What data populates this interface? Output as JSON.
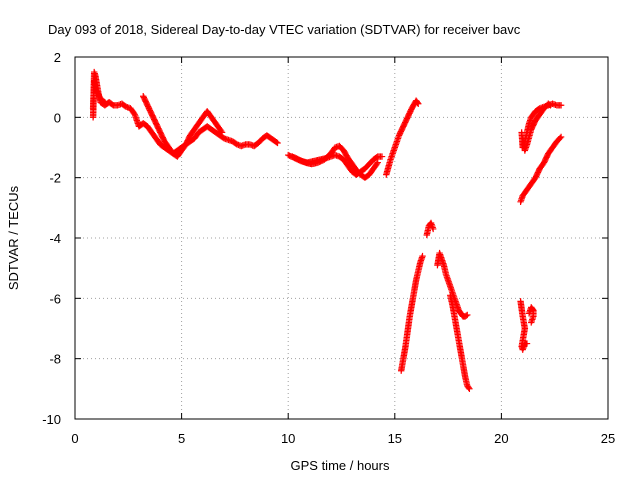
{
  "chart_data": {
    "type": "scatter",
    "title": "Day 093 of 2018, Sidereal Day-to-day VTEC variation (SDTVAR) for receiver bavc",
    "xlabel": "GPS time / hours",
    "ylabel": "SDTVAR / TECUs",
    "xlim": [
      0,
      25
    ],
    "ylim": [
      -10,
      2
    ],
    "xticks": [
      "0",
      "5",
      "10",
      "15",
      "20",
      "25"
    ],
    "yticks": [
      "-10",
      "-8",
      "-6",
      "-4",
      "-2",
      "0",
      "2"
    ],
    "grid": true,
    "marker": "plus",
    "color": "#ff0000",
    "series": [
      {
        "name": "sdtvar",
        "segments": [
          [
            [
              0.85,
              0.0
            ],
            [
              0.9,
              1.5
            ],
            [
              0.95,
              1.4
            ],
            [
              1.0,
              1.2
            ],
            [
              1.1,
              0.8
            ],
            [
              1.2,
              0.5
            ],
            [
              1.4,
              0.4
            ],
            [
              1.6,
              0.5
            ],
            [
              1.8,
              0.4
            ],
            [
              2.0,
              0.4
            ],
            [
              2.2,
              0.45
            ],
            [
              2.4,
              0.35
            ],
            [
              2.6,
              0.3
            ],
            [
              2.8,
              0.1
            ],
            [
              3.0,
              -0.3
            ],
            [
              3.2,
              -0.2
            ],
            [
              3.4,
              -0.3
            ],
            [
              3.6,
              -0.5
            ],
            [
              3.8,
              -0.7
            ],
            [
              4.0,
              -0.9
            ],
            [
              4.2,
              -1.0
            ],
            [
              4.4,
              -1.1
            ],
            [
              4.6,
              -1.2
            ],
            [
              4.8,
              -1.1
            ],
            [
              5.0,
              -1.0
            ],
            [
              5.2,
              -0.9
            ],
            [
              5.4,
              -0.8
            ],
            [
              5.6,
              -0.7
            ],
            [
              5.8,
              -0.5
            ],
            [
              6.0,
              -0.4
            ],
            [
              6.2,
              -0.3
            ],
            [
              6.4,
              -0.4
            ],
            [
              6.6,
              -0.5
            ],
            [
              6.8,
              -0.6
            ],
            [
              7.0,
              -0.7
            ],
            [
              7.2,
              -0.75
            ],
            [
              7.4,
              -0.8
            ],
            [
              7.6,
              -0.9
            ],
            [
              7.8,
              -0.95
            ],
            [
              8.0,
              -0.9
            ],
            [
              8.2,
              -0.9
            ],
            [
              8.4,
              -0.95
            ],
            [
              8.6,
              -0.85
            ],
            [
              8.8,
              -0.7
            ],
            [
              9.0,
              -0.6
            ],
            [
              9.2,
              -0.7
            ],
            [
              9.4,
              -0.8
            ],
            [
              9.5,
              -0.85
            ]
          ],
          [
            [
              3.2,
              0.7
            ],
            [
              3.4,
              0.4
            ],
            [
              3.6,
              0.1
            ],
            [
              3.8,
              -0.2
            ],
            [
              4.0,
              -0.5
            ],
            [
              4.2,
              -0.8
            ],
            [
              4.4,
              -1.0
            ],
            [
              4.6,
              -1.2
            ],
            [
              4.8,
              -1.3
            ],
            [
              5.0,
              -1.1
            ],
            [
              5.2,
              -0.9
            ],
            [
              5.4,
              -0.6
            ],
            [
              5.6,
              -0.4
            ],
            [
              5.8,
              -0.2
            ],
            [
              6.0,
              0.0
            ],
            [
              6.2,
              0.2
            ],
            [
              6.3,
              0.1
            ],
            [
              6.5,
              -0.1
            ],
            [
              6.7,
              -0.3
            ],
            [
              6.9,
              -0.5
            ]
          ],
          [
            [
              0.85,
              0.3
            ],
            [
              0.9,
              1.2
            ],
            [
              1.0,
              0.9
            ],
            [
              1.2,
              0.6
            ],
            [
              1.4,
              0.5
            ]
          ],
          [
            [
              10.0,
              -1.25
            ],
            [
              10.3,
              -1.35
            ],
            [
              10.6,
              -1.45
            ],
            [
              10.9,
              -1.5
            ],
            [
              11.2,
              -1.45
            ],
            [
              11.5,
              -1.4
            ],
            [
              11.8,
              -1.35
            ],
            [
              12.0,
              -1.3
            ],
            [
              12.2,
              -1.25
            ],
            [
              12.4,
              -1.3
            ],
            [
              12.6,
              -1.4
            ],
            [
              12.8,
              -1.6
            ],
            [
              13.0,
              -1.8
            ],
            [
              13.2,
              -1.9
            ],
            [
              13.4,
              -1.8
            ],
            [
              13.6,
              -1.7
            ],
            [
              13.8,
              -1.55
            ],
            [
              14.0,
              -1.4
            ],
            [
              14.2,
              -1.3
            ],
            [
              14.4,
              -1.3
            ]
          ],
          [
            [
              10.2,
              -1.3
            ],
            [
              10.5,
              -1.4
            ],
            [
              10.8,
              -1.5
            ],
            [
              11.1,
              -1.55
            ],
            [
              11.4,
              -1.5
            ],
            [
              11.7,
              -1.4
            ],
            [
              12.0,
              -1.2
            ],
            [
              12.2,
              -1.0
            ],
            [
              12.4,
              -0.95
            ],
            [
              12.6,
              -1.1
            ],
            [
              12.8,
              -1.35
            ],
            [
              13.0,
              -1.55
            ],
            [
              13.2,
              -1.75
            ],
            [
              13.4,
              -1.9
            ],
            [
              13.6,
              -2.0
            ],
            [
              13.8,
              -1.9
            ],
            [
              14.0,
              -1.7
            ],
            [
              14.2,
              -1.5
            ]
          ],
          [
            [
              14.6,
              -1.9
            ],
            [
              14.8,
              -1.4
            ],
            [
              15.0,
              -1.0
            ],
            [
              15.2,
              -0.6
            ],
            [
              15.4,
              -0.3
            ],
            [
              15.6,
              0.0
            ],
            [
              15.8,
              0.3
            ],
            [
              16.0,
              0.55
            ],
            [
              16.1,
              0.45
            ]
          ],
          [
            [
              15.3,
              -8.4
            ],
            [
              15.4,
              -8.0
            ],
            [
              15.5,
              -7.6
            ],
            [
              15.6,
              -7.1
            ],
            [
              15.7,
              -6.6
            ],
            [
              15.8,
              -6.2
            ],
            [
              15.9,
              -5.8
            ],
            [
              16.0,
              -5.4
            ],
            [
              16.1,
              -5.1
            ],
            [
              16.2,
              -4.8
            ],
            [
              16.3,
              -4.6
            ]
          ],
          [
            [
              16.5,
              -3.9
            ],
            [
              16.6,
              -3.6
            ],
            [
              16.7,
              -3.5
            ],
            [
              16.8,
              -3.7
            ]
          ],
          [
            [
              17.0,
              -4.9
            ],
            [
              17.1,
              -4.5
            ],
            [
              17.2,
              -4.7
            ],
            [
              17.3,
              -4.9
            ],
            [
              17.4,
              -5.2
            ],
            [
              17.5,
              -5.4
            ],
            [
              17.6,
              -5.6
            ],
            [
              17.7,
              -5.8
            ],
            [
              17.8,
              -6.0
            ],
            [
              17.9,
              -6.2
            ],
            [
              18.0,
              -6.4
            ],
            [
              18.1,
              -6.5
            ],
            [
              18.2,
              -6.6
            ],
            [
              18.3,
              -6.6
            ],
            [
              18.4,
              -6.55
            ]
          ],
          [
            [
              17.6,
              -5.9
            ],
            [
              17.7,
              -6.2
            ],
            [
              17.8,
              -6.6
            ],
            [
              17.9,
              -7.0
            ],
            [
              18.0,
              -7.4
            ],
            [
              18.1,
              -7.8
            ],
            [
              18.2,
              -8.2
            ],
            [
              18.3,
              -8.6
            ],
            [
              18.4,
              -8.9
            ],
            [
              18.5,
              -9.0
            ]
          ],
          [
            [
              20.95,
              -0.5
            ],
            [
              21.0,
              -1.0
            ],
            [
              21.1,
              -0.8
            ],
            [
              21.2,
              -0.5
            ],
            [
              21.3,
              -0.2
            ],
            [
              21.4,
              0.0
            ],
            [
              21.5,
              0.1
            ],
            [
              21.6,
              0.2
            ],
            [
              21.8,
              0.3
            ],
            [
              22.0,
              0.35
            ],
            [
              22.2,
              0.4
            ],
            [
              22.4,
              0.45
            ],
            [
              22.6,
              0.4
            ],
            [
              22.8,
              0.4
            ]
          ],
          [
            [
              21.0,
              -0.7
            ],
            [
              21.1,
              -1.1
            ],
            [
              21.2,
              -0.9
            ],
            [
              21.4,
              -0.4
            ],
            [
              21.6,
              -0.1
            ],
            [
              21.8,
              0.1
            ],
            [
              22.0,
              0.3
            ],
            [
              22.2,
              0.45
            ],
            [
              22.3,
              0.4
            ]
          ],
          [
            [
              20.9,
              -2.8
            ],
            [
              21.0,
              -2.6
            ],
            [
              21.2,
              -2.4
            ],
            [
              21.4,
              -2.2
            ],
            [
              21.6,
              -2.0
            ],
            [
              21.8,
              -1.7
            ],
            [
              22.0,
              -1.5
            ],
            [
              22.2,
              -1.2
            ],
            [
              22.4,
              -1.0
            ],
            [
              22.6,
              -0.8
            ],
            [
              22.8,
              -0.65
            ]
          ],
          [
            [
              20.9,
              -6.1
            ],
            [
              21.0,
              -6.6
            ],
            [
              21.1,
              -7.0
            ],
            [
              20.95,
              -7.6
            ],
            [
              21.0,
              -7.7
            ],
            [
              21.1,
              -7.5
            ],
            [
              21.2,
              -7.5
            ]
          ],
          [
            [
              21.3,
              -6.5
            ],
            [
              21.4,
              -6.3
            ],
            [
              21.5,
              -6.4
            ],
            [
              21.5,
              -6.6
            ],
            [
              21.4,
              -6.8
            ]
          ]
        ]
      }
    ]
  }
}
